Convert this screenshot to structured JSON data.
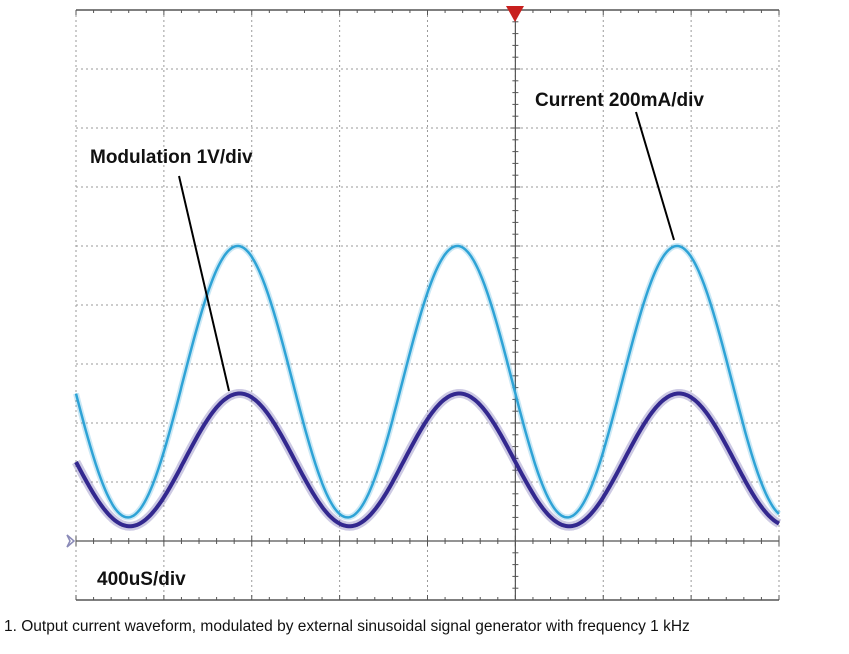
{
  "chart_data": {
    "type": "line",
    "title": "",
    "caption": "1. Output current waveform, modulated by external sinusoidal signal generator with frequency 1 kHz",
    "time_scale_label": "400uS/div",
    "x_unit": "us",
    "xlim": [
      0,
      3200
    ],
    "x_divisions": 8,
    "y_unit": "div",
    "ylim": [
      -1,
      9
    ],
    "y_divisions": 10,
    "grid": true,
    "trigger_marker_time_us": 2000,
    "ground_level_div": 0,
    "frequency_hz": 1000,
    "series": [
      {
        "name": "Current 200mA/div",
        "color": "#2ea3d6",
        "peak_div": 5.0,
        "trough_div": 0.4,
        "peak_time_us": 736
      },
      {
        "name": "Modulation 1V/div",
        "color": "#33288f",
        "peak_div": 2.5,
        "trough_div": 0.25,
        "peak_time_us": 745
      }
    ]
  }
}
